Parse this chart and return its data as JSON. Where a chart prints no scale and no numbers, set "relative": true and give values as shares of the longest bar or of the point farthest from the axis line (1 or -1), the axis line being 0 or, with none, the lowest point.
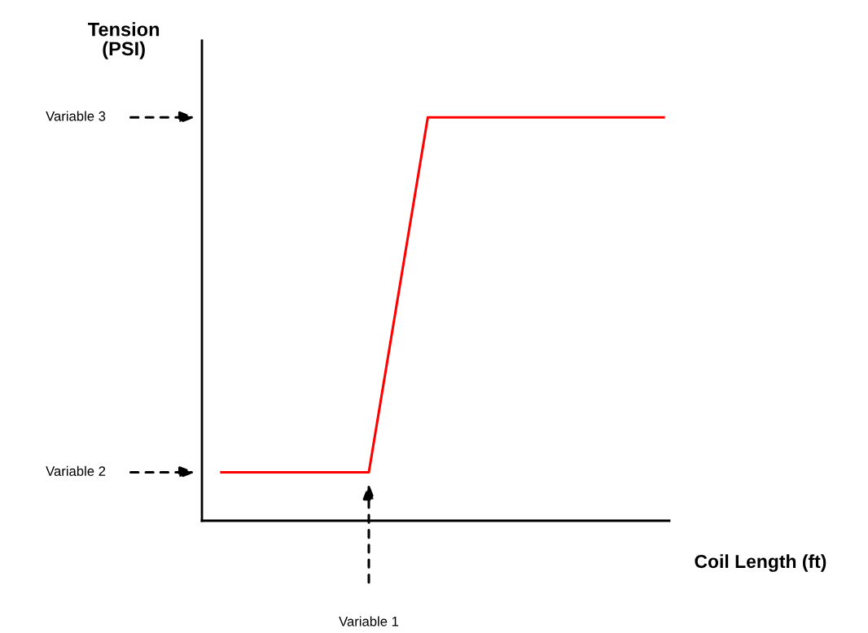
{
  "chart_data": {
    "type": "line",
    "relative": true,
    "xlabel": "Coil Length (ft)",
    "ylabel": "Tension\n(PSI)",
    "categories": [
      null,
      null,
      null,
      null,
      null,
      null,
      null,
      null,
      null,
      null,
      null,
      null,
      null,
      null,
      null,
      null
    ],
    "series": [
      {
        "color": "#ff0000",
        "values": [
          0.12,
          0.12,
          0.12,
          0.12,
          0.12,
          0.12,
          0.56,
          1,
          1,
          1,
          1,
          1,
          1,
          1,
          1,
          1
        ]
      }
    ],
    "annotations": [
      "Variable 3",
      "Variable 2",
      "Variable 1"
    ],
    "tick_labels": false,
    "marker": "none",
    "line_style": "solid"
  }
}
